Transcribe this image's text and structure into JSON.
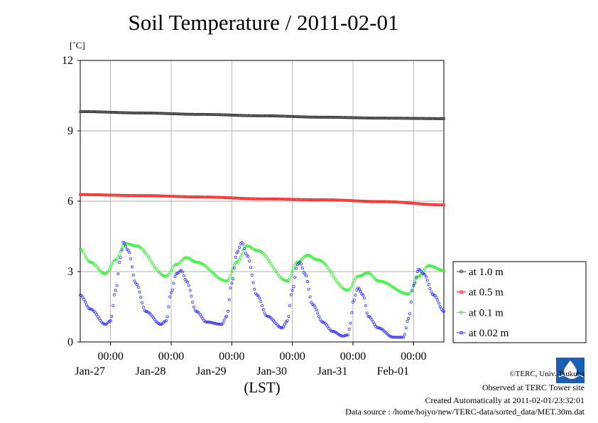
{
  "title": "Soil Temperature / 2011-02-01",
  "credits": {
    "copyright": "©TERC, Univ. Tsukuba",
    "observed": "Observed at TERC Tower site",
    "created": "Created Automatically at 2011-02-01/23:32:01",
    "source": "Data source : /home/hojyo/new/TERC-data/sorted_data/MET.30m.dat"
  },
  "logo": {
    "icon": "terc-logo-icon",
    "text": "TERC",
    "color": "#1a5fb4"
  },
  "chart_data": {
    "type": "scatter",
    "ylabel": "[˚C]",
    "xlabel": "(LST)",
    "ylim": [
      0,
      12
    ],
    "yticks": [
      "0",
      "3",
      "6",
      "9",
      "12"
    ],
    "xlim_hours": [
      0,
      144
    ],
    "x_start": "2011-01-26 12:00",
    "xticks": [
      {
        "time": "00:00",
        "date": "Jan-27"
      },
      {
        "time": "00:00",
        "date": "Jan-28"
      },
      {
        "time": "00:00",
        "date": "Jan-29"
      },
      {
        "time": "00:00",
        "date": "Jan-30"
      },
      {
        "time": "00:00",
        "date": "Jan-31"
      },
      {
        "time": "00:00",
        "date": "Feb-01"
      }
    ],
    "grid": true,
    "legend_position": "right",
    "series": [
      {
        "name": "at 1.0 m",
        "color": "#333333",
        "points": [
          [
            0,
            9.82
          ],
          [
            24,
            9.76
          ],
          [
            48,
            9.7
          ],
          [
            72,
            9.64
          ],
          [
            96,
            9.58
          ],
          [
            120,
            9.54
          ],
          [
            144,
            9.52
          ]
        ]
      },
      {
        "name": "at 0.5 m",
        "color": "#ff2020",
        "points": [
          [
            0,
            6.28
          ],
          [
            24,
            6.24
          ],
          [
            48,
            6.18
          ],
          [
            72,
            6.1
          ],
          [
            96,
            6.06
          ],
          [
            120,
            5.98
          ],
          [
            144,
            5.84
          ]
        ]
      },
      {
        "name": "at 0.1 m",
        "color": "#33ee33",
        "points": [
          [
            0,
            3.95
          ],
          [
            4,
            3.4
          ],
          [
            10,
            2.9
          ],
          [
            14,
            3.5
          ],
          [
            18,
            4.2
          ],
          [
            22,
            4.1
          ],
          [
            34,
            2.8
          ],
          [
            38,
            3.3
          ],
          [
            42,
            3.6
          ],
          [
            46,
            3.4
          ],
          [
            58,
            2.6
          ],
          [
            62,
            3.4
          ],
          [
            66,
            4.1
          ],
          [
            70,
            3.9
          ],
          [
            82,
            2.6
          ],
          [
            86,
            3.4
          ],
          [
            90,
            3.7
          ],
          [
            94,
            3.5
          ],
          [
            106,
            2.2
          ],
          [
            110,
            2.8
          ],
          [
            114,
            2.95
          ],
          [
            118,
            2.6
          ],
          [
            130,
            2.05
          ],
          [
            134,
            2.8
          ],
          [
            138,
            3.25
          ],
          [
            144,
            3.05
          ]
        ]
      },
      {
        "name": "at 0.02 m",
        "color": "#3333ff",
        "points": [
          [
            0,
            2.0
          ],
          [
            4,
            1.4
          ],
          [
            10,
            0.75
          ],
          [
            12,
            0.9
          ],
          [
            14,
            2.2
          ],
          [
            16,
            3.6
          ],
          [
            17,
            4.25
          ],
          [
            19,
            3.9
          ],
          [
            22,
            2.5
          ],
          [
            26,
            1.3
          ],
          [
            32,
            0.75
          ],
          [
            34,
            0.9
          ],
          [
            36,
            2.1
          ],
          [
            38,
            2.9
          ],
          [
            40,
            3.05
          ],
          [
            42,
            2.6
          ],
          [
            46,
            1.3
          ],
          [
            50,
            0.85
          ],
          [
            56,
            0.75
          ],
          [
            58,
            1.1
          ],
          [
            60,
            2.5
          ],
          [
            62,
            3.8
          ],
          [
            64,
            4.25
          ],
          [
            66,
            3.7
          ],
          [
            70,
            2.0
          ],
          [
            74,
            1.1
          ],
          [
            80,
            0.6
          ],
          [
            82,
            0.9
          ],
          [
            84,
            2.2
          ],
          [
            86,
            3.3
          ],
          [
            87,
            3.4
          ],
          [
            89,
            2.9
          ],
          [
            92,
            1.6
          ],
          [
            96,
            0.85
          ],
          [
            100,
            0.45
          ],
          [
            104,
            0.25
          ],
          [
            106,
            0.3
          ],
          [
            107,
            0.8
          ],
          [
            108,
            1.7
          ],
          [
            110,
            2.3
          ],
          [
            112,
            2.0
          ],
          [
            114,
            1.1
          ],
          [
            118,
            0.6
          ],
          [
            124,
            0.2
          ],
          [
            128,
            0.2
          ],
          [
            130,
            1.0
          ],
          [
            132,
            2.4
          ],
          [
            134,
            3.1
          ],
          [
            136,
            2.9
          ],
          [
            140,
            2.0
          ],
          [
            144,
            1.3
          ]
        ]
      }
    ]
  }
}
